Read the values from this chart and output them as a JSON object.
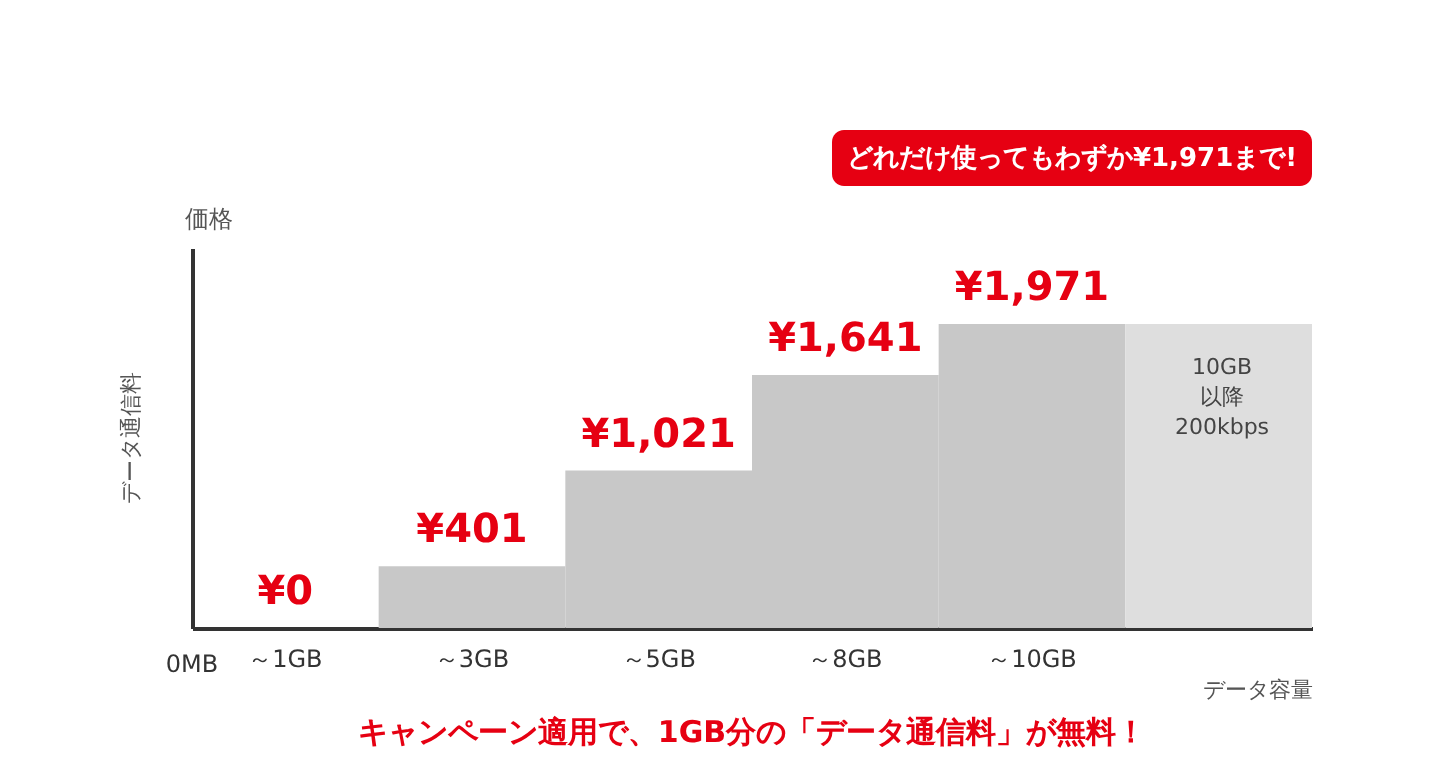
{
  "chart_data": {
    "type": "bar",
    "categories": [
      "～1GB",
      "～3GB",
      "～5GB",
      "～8GB",
      "～10GB",
      null
    ],
    "values": [
      0,
      401,
      1021,
      1641,
      1971,
      1971
    ],
    "colors": [
      "#c8c8c8",
      "#c8c8c8",
      "#c8c8c8",
      "#c8c8c8",
      "#c8c8c8",
      "#dedede"
    ],
    "value_labels": [
      "¥0",
      "¥401",
      "¥1,021",
      "¥1,641",
      "¥1,971",
      null
    ],
    "ylabel": "価格",
    "xlabel": "データ容量",
    "annotations": [
      "どれだけ使ってもわずか¥1,971まで!",
      "10GB以降200kbps",
      "キャンペーン適用で、1GB分の「データ通信料」が無料！",
      "0MB",
      "データ通信料"
    ],
    "grid": false
  }
}
